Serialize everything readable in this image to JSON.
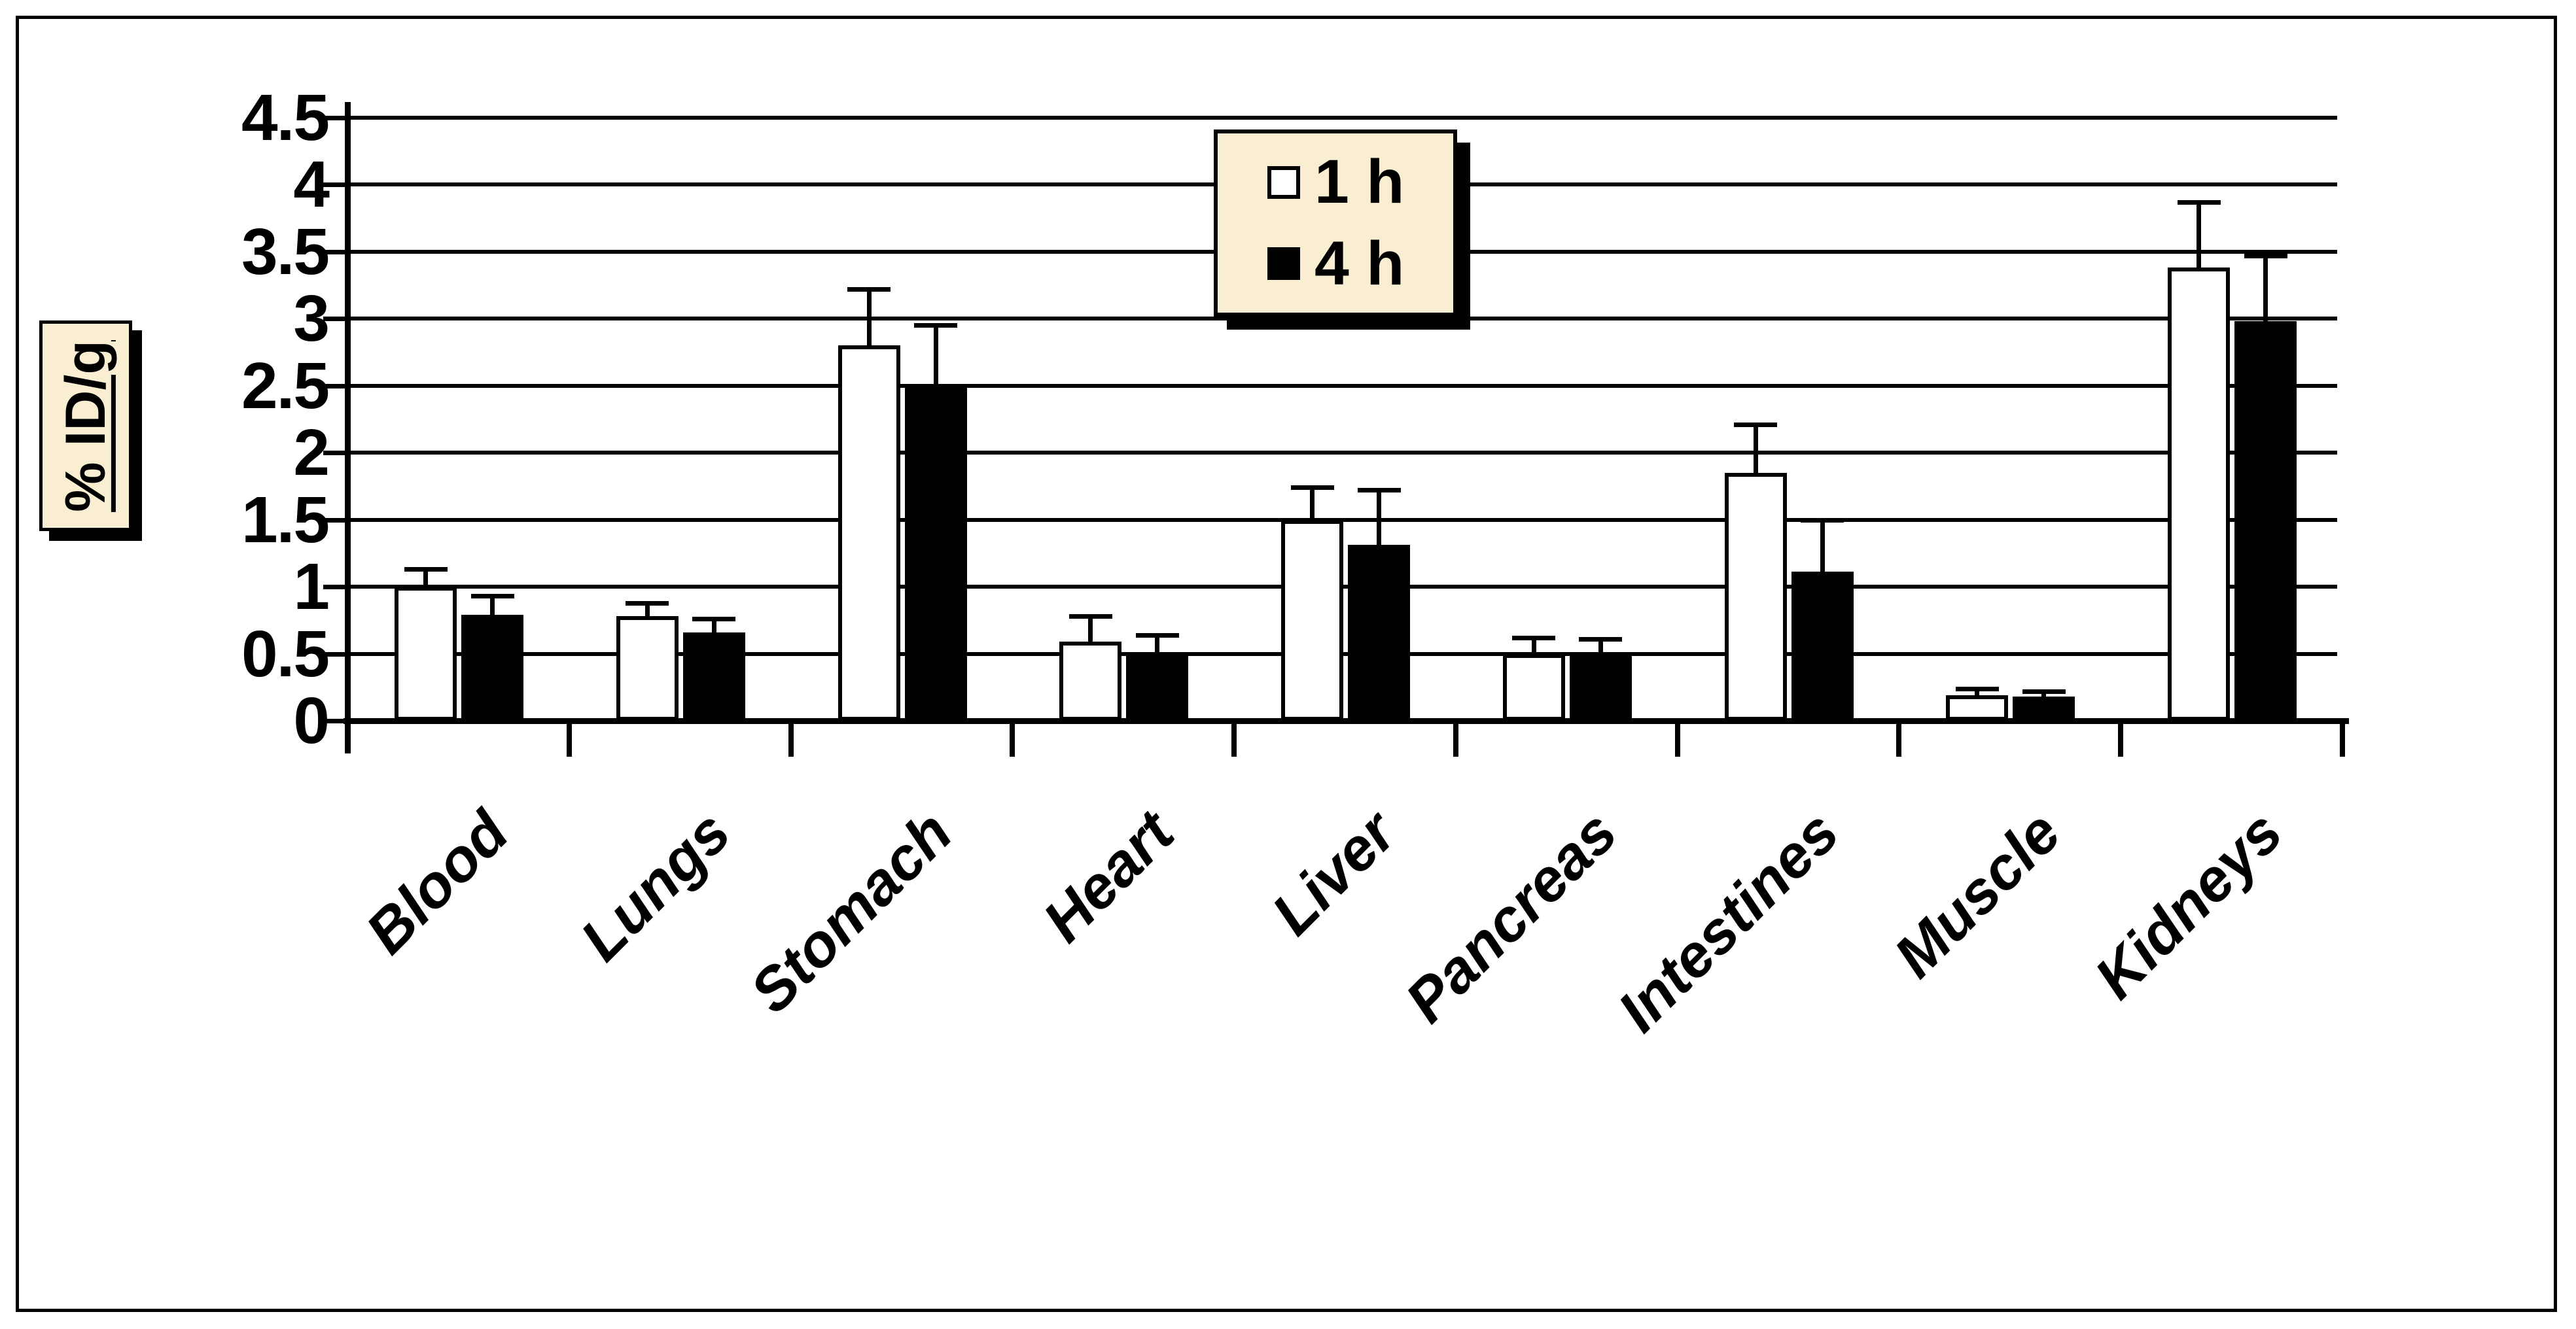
{
  "figure": {
    "background": "#ffffff",
    "border_color": "#000000"
  },
  "colors": {
    "panel_bg": "#f9edd2",
    "axis": "#000000",
    "bar_series_1h": "#ffffff",
    "bar_series_4h": "#000000"
  },
  "chart_data": {
    "type": "bar",
    "title": "",
    "xlabel": "",
    "ylabel": "% ID/g",
    "ylim": [
      0,
      4.5
    ],
    "ytick_step": 0.5,
    "ytick_labels": [
      "4.5",
      "4",
      "3.5",
      "3",
      "2.5",
      "2",
      "1.5",
      "1",
      "0.5",
      "0"
    ],
    "grid": "horizontal",
    "legend_position": "top-center",
    "error_bars": "upper only, capped",
    "categories": [
      "Blood",
      "Lungs",
      "Stomach",
      "Heart",
      "Liver",
      "Pancreas",
      "Intestines",
      "Muscle",
      "Kidneys"
    ],
    "series": [
      {
        "name": "1 h",
        "fill": "#ffffff",
        "values": [
          1.0,
          0.78,
          2.8,
          0.59,
          1.5,
          0.5,
          1.85,
          0.19,
          3.38
        ],
        "errors": [
          0.13,
          0.1,
          0.42,
          0.19,
          0.24,
          0.12,
          0.36,
          0.05,
          0.49
        ]
      },
      {
        "name": "4 h",
        "fill": "#000000",
        "values": [
          0.79,
          0.66,
          2.5,
          0.5,
          1.31,
          0.5,
          1.11,
          0.18,
          2.98
        ],
        "errors": [
          0.14,
          0.1,
          0.45,
          0.14,
          0.41,
          0.11,
          0.39,
          0.04,
          0.49
        ]
      }
    ]
  }
}
